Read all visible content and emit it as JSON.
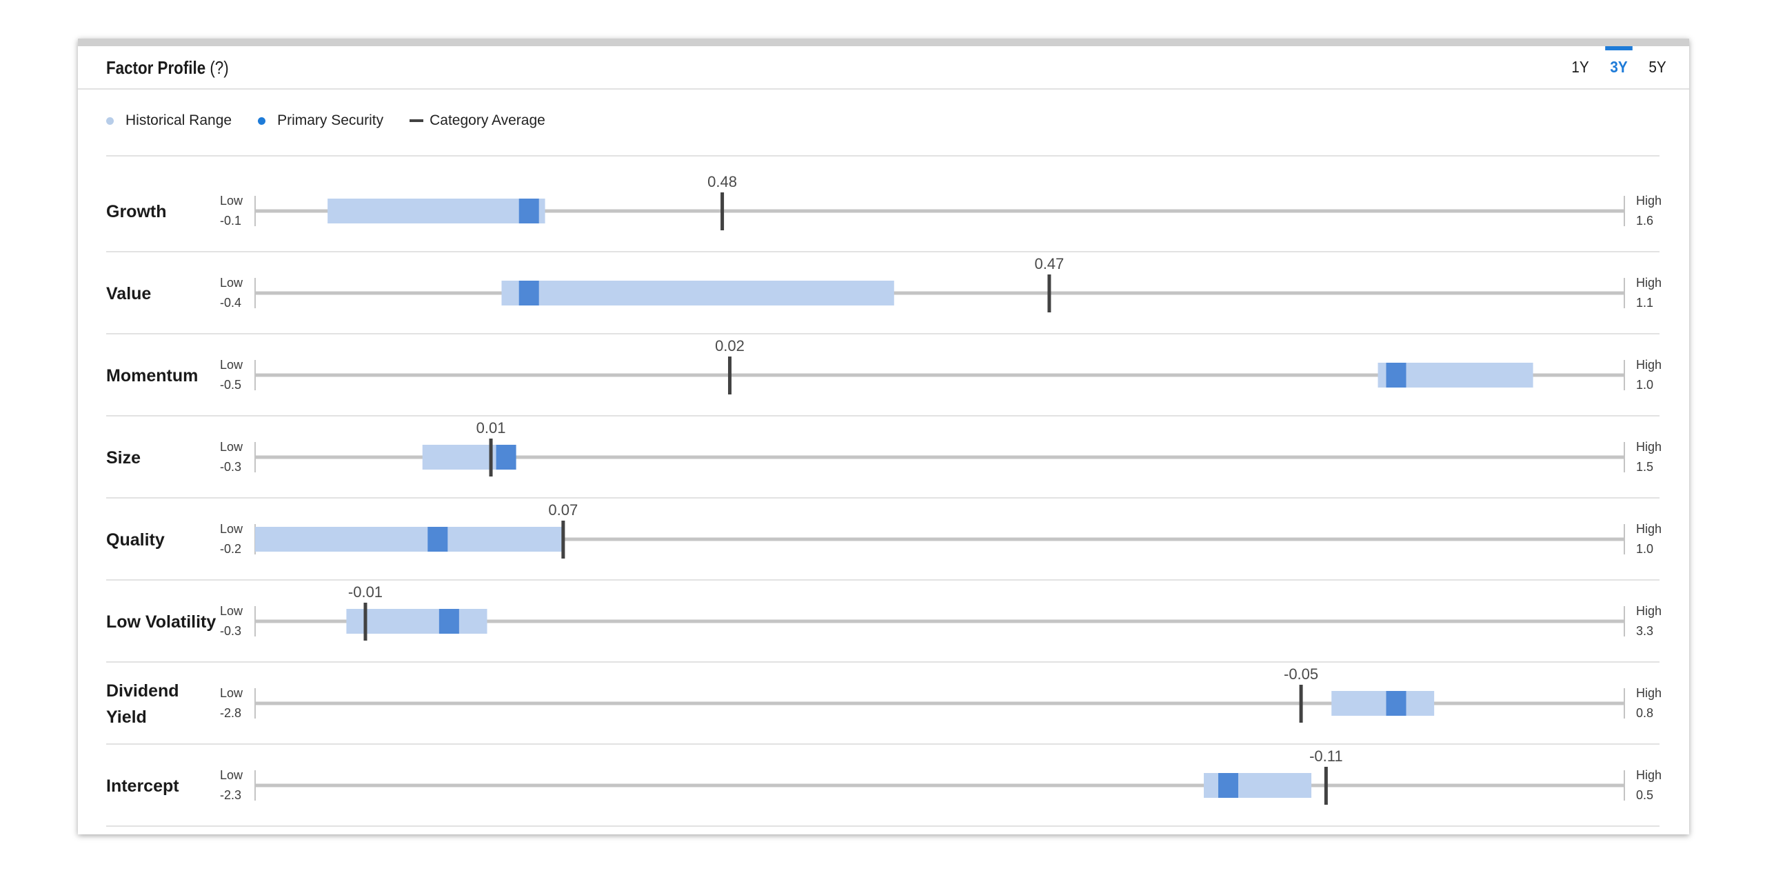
{
  "header": {
    "title": "Factor Profile",
    "help": "(?)",
    "tabs": [
      {
        "label": "1Y",
        "active": false
      },
      {
        "label": "3Y",
        "active": true
      },
      {
        "label": "5Y",
        "active": false
      }
    ]
  },
  "legend": {
    "historical_range": "Historical Range",
    "primary_security": "Primary Security",
    "category_average": "Category Average"
  },
  "colors": {
    "range": "#bcd1ef",
    "primary": "#4f88d6",
    "average": "#424242",
    "track": "#c4c4c4",
    "legend_range_dot": "#b7cde9",
    "legend_primary_dot": "#1e7bd8",
    "accent": "#1e7bd8"
  },
  "chart_data": {
    "type": "range",
    "low_text": "Low",
    "high_text": "High",
    "factors": [
      {
        "name": [
          "Growth"
        ],
        "low": -0.1,
        "low_label": "-0.1",
        "high": 1.6,
        "high_label": "1.6",
        "range": [
          -0.01,
          0.26
        ],
        "primary": 0.24,
        "average": 0.48,
        "average_label": "0.48"
      },
      {
        "name": [
          "Value"
        ],
        "low": -0.4,
        "low_label": "-0.4",
        "high": 1.1,
        "high_label": "1.1",
        "range": [
          -0.13,
          0.3
        ],
        "primary": -0.1,
        "average": 0.47,
        "average_label": "0.47"
      },
      {
        "name": [
          "Momentum"
        ],
        "low": -0.5,
        "low_label": "-0.5",
        "high": 1.0,
        "high_label": "1.0",
        "range": [
          0.73,
          0.9
        ],
        "primary": 0.75,
        "average": 0.02,
        "average_label": "0.02"
      },
      {
        "name": [
          "Size"
        ],
        "low": -0.3,
        "low_label": "-0.3",
        "high": 1.5,
        "high_label": "1.5",
        "range": [
          -0.08,
          0.04
        ],
        "primary": 0.03,
        "average": 0.01,
        "average_label": "0.01"
      },
      {
        "name": [
          "Quality"
        ],
        "low": -0.2,
        "low_label": "-0.2",
        "high": 1.0,
        "high_label": "1.0",
        "range": [
          -0.2,
          0.07
        ],
        "primary": -0.04,
        "average": 0.07,
        "average_label": "0.07"
      },
      {
        "name": [
          "Low Volatility"
        ],
        "low": -0.3,
        "low_label": "-0.3",
        "high": 3.3,
        "high_label": "3.3",
        "range": [
          -0.06,
          0.31
        ],
        "primary": 0.21,
        "average": -0.01,
        "average_label": "-0.01"
      },
      {
        "name": [
          "Dividend",
          "Yield"
        ],
        "low": -2.8,
        "low_label": "-2.8",
        "high": 0.8,
        "high_label": "0.8",
        "range": [
          0.03,
          0.3
        ],
        "primary": 0.2,
        "average": -0.05,
        "average_label": "-0.05"
      },
      {
        "name": [
          "Intercept"
        ],
        "low": -2.3,
        "low_label": "-2.3",
        "high": 0.5,
        "high_label": "0.5",
        "range": [
          -0.36,
          -0.14
        ],
        "primary": -0.31,
        "average": -0.11,
        "average_label": "-0.11"
      }
    ]
  }
}
